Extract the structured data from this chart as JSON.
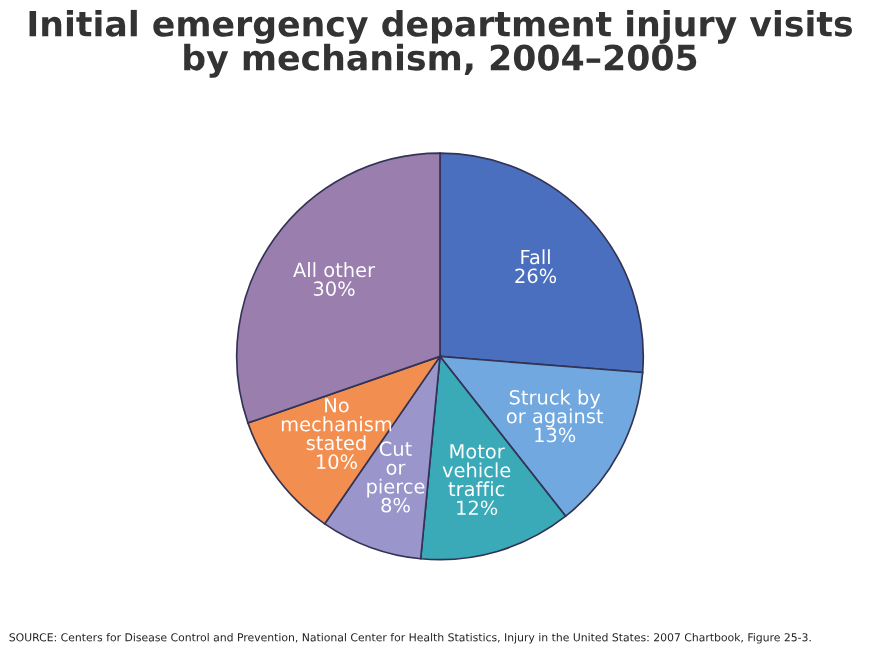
{
  "chart_data": {
    "type": "pie",
    "title": "Initial emergency department injury visits\nby mechanism, 2004–2005",
    "categories": [
      "Fall",
      "Struck by\nor against",
      "Motor\nvehicle\ntraffic",
      "Cut\nor\npierce",
      "No\nmechanism\nstated",
      "All other"
    ],
    "values": [
      26,
      13,
      12,
      8,
      10,
      30
    ],
    "value_labels": [
      "26%",
      "13%",
      "12%",
      "8%",
      "10%",
      "30%"
    ],
    "colors": [
      "#4a6fbf",
      "#70a8df",
      "#3aaab8",
      "#9a96cc",
      "#f28f50",
      "#9a7fae"
    ],
    "annotations": [
      "SOURCE: Centers for Disease Control and Prevention, National Center for Health Statistics, Injury in the United States: 2007 Chartbook, Figure 25-3."
    ],
    "legend": false
  }
}
